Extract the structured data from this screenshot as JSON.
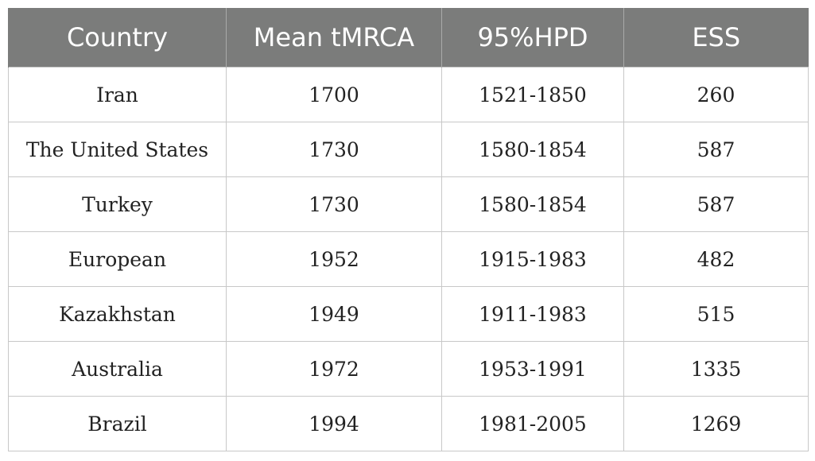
{
  "table": {
    "headers": [
      "Country",
      "Mean tMRCA",
      "95%HPD",
      "ESS"
    ],
    "rows": [
      [
        "Iran",
        "1700",
        "1521-1850",
        "260"
      ],
      [
        "The United States",
        "1730",
        "1580-1854",
        "587"
      ],
      [
        "Turkey",
        "1730",
        "1580-1854",
        "587"
      ],
      [
        "European",
        "1952",
        "1915-1983",
        "482"
      ],
      [
        "Kazakhstan",
        "1949",
        "1911-1983",
        "515"
      ],
      [
        "Australia",
        "1972",
        "1953-1991",
        "1335"
      ],
      [
        "Brazil",
        "1994",
        "1981-2005",
        "1269"
      ]
    ]
  }
}
